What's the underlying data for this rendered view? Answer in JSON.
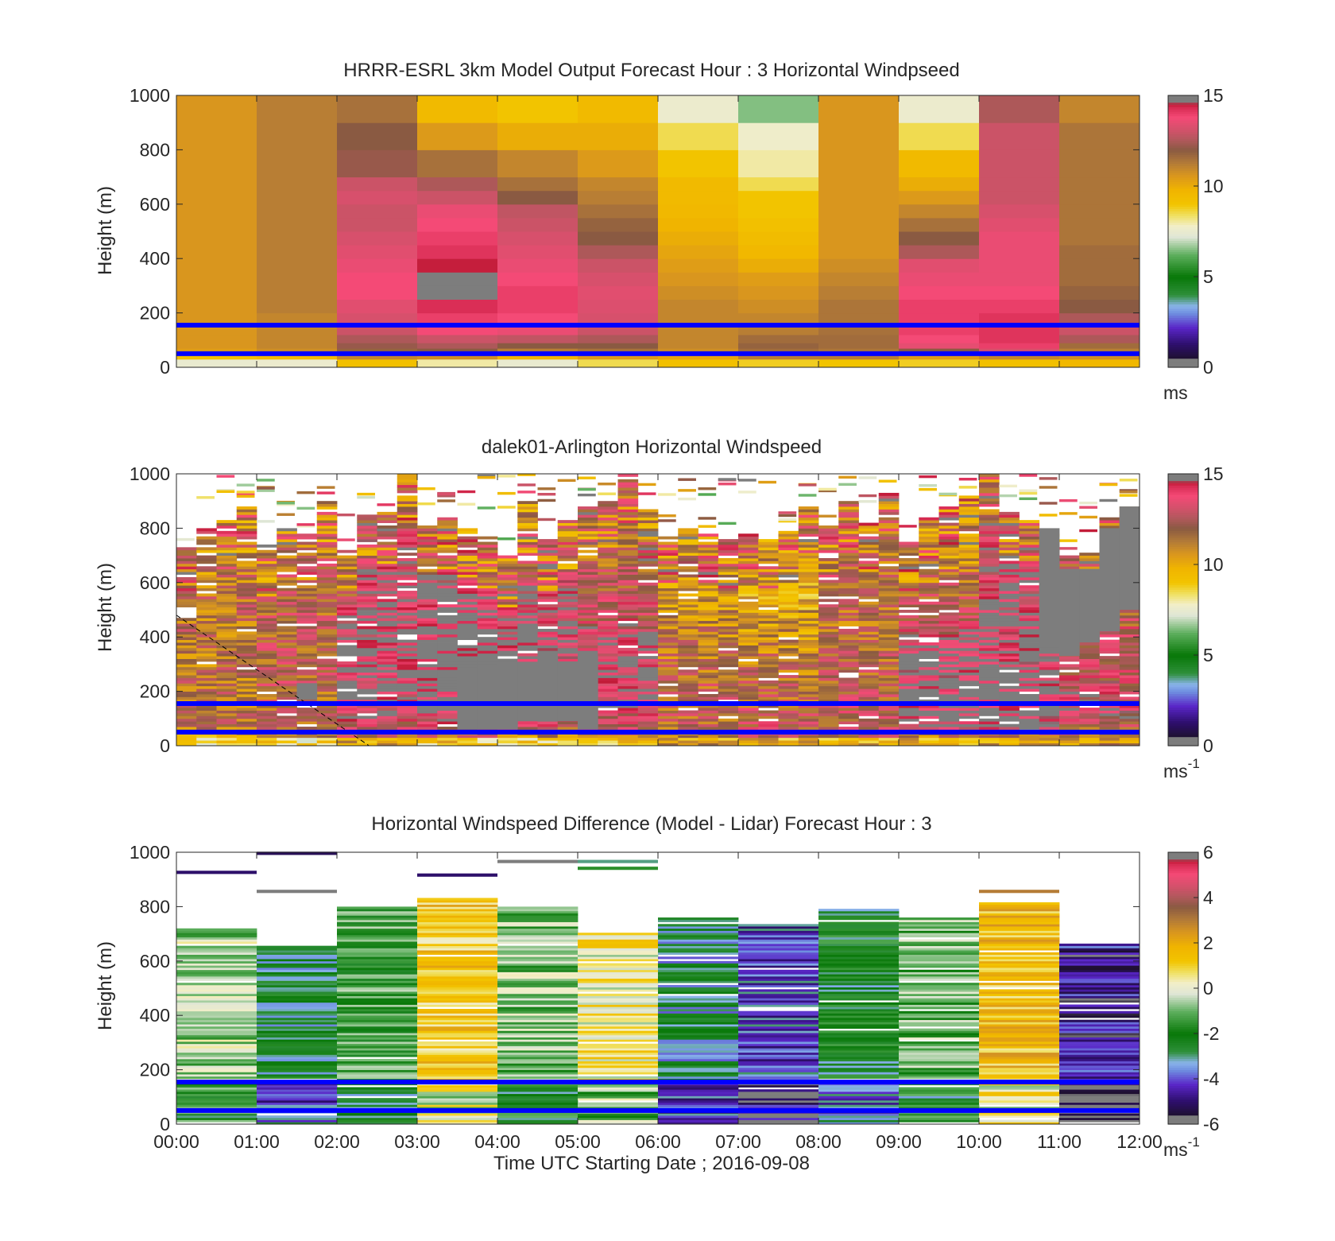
{
  "figure": {
    "xlabel": "Time UTC  Starting Date ; 2016-09-08",
    "x_ticks": [
      "00:00",
      "01:00",
      "02:00",
      "03:00",
      "04:00",
      "05:00",
      "06:00",
      "07:00",
      "08:00",
      "09:00",
      "10:00",
      "11:00",
      "12:00"
    ],
    "blue_lines_height_m": [
      50,
      155
    ],
    "line_color": "#0000ff"
  },
  "chart_data": [
    {
      "type": "heatmap",
      "title": "HRRR-ESRL 3km Model Output   Forecast Hour : 3 Horizontal Windpseed",
      "xlabel": "",
      "ylabel": "Height (m)",
      "ylim": [
        0,
        1000
      ],
      "y_ticks": [
        "0",
        "200",
        "400",
        "600",
        "800",
        "1000"
      ],
      "colorbar": {
        "min": 0,
        "max": 15,
        "ticks": [
          "0",
          "5",
          "10",
          "15"
        ],
        "unit": "ms",
        "unit_sup": ""
      },
      "x_hours": [
        0,
        1,
        2,
        3,
        4,
        5,
        6,
        7,
        8,
        9,
        10,
        11,
        12
      ],
      "y_levels": [
        0,
        30,
        50,
        70,
        90,
        120,
        150,
        200,
        250,
        300,
        350,
        400,
        450,
        500,
        550,
        600,
        650,
        700,
        800,
        900,
        1000
      ],
      "values": [
        [
          7.5,
          9.2,
          10.4,
          10.6,
          10.6,
          10.6,
          10.6,
          10.6,
          10.6,
          10.6,
          10.6,
          10.6,
          10.6,
          10.6,
          10.6,
          10.6,
          10.6,
          10.6,
          10.6,
          10.6
        ],
        [
          7.6,
          9.5,
          10.8,
          11.0,
          11.0,
          11.0,
          11.0,
          11.2,
          11.2,
          11.2,
          11.2,
          11.2,
          11.2,
          11.2,
          11.2,
          11.2,
          11.2,
          11.2,
          11.2,
          11.2
        ],
        [
          9.2,
          11.0,
          11.8,
          12.2,
          12.5,
          13.0,
          13.2,
          13.4,
          13.8,
          13.8,
          13.6,
          13.4,
          13.2,
          13.0,
          13.0,
          13.2,
          13.0,
          12.2,
          12.0,
          11.5
        ],
        [
          8.0,
          10.8,
          12.0,
          12.5,
          13.0,
          13.8,
          14.0,
          14.3,
          14.6,
          14.8,
          14.5,
          14.2,
          14.0,
          13.8,
          13.6,
          13.0,
          12.5,
          11.5,
          10.5,
          9.5
        ],
        [
          7.5,
          9.8,
          11.2,
          12.0,
          12.8,
          13.6,
          13.8,
          14.0,
          14.0,
          13.8,
          13.6,
          13.4,
          13.2,
          13.0,
          12.8,
          12.0,
          11.5,
          11.0,
          10.0,
          9.0
        ],
        [
          8.5,
          10.5,
          11.5,
          12.0,
          12.5,
          13.0,
          13.2,
          13.3,
          13.4,
          13.2,
          13.0,
          12.5,
          12.0,
          11.8,
          11.5,
          11.2,
          11.0,
          10.5,
          10.0,
          9.5
        ],
        [
          9.2,
          10.2,
          10.8,
          11.0,
          11.0,
          11.0,
          11.0,
          11.0,
          10.8,
          10.6,
          10.4,
          10.2,
          10.0,
          9.8,
          9.6,
          9.5,
          9.5,
          9.0,
          8.5,
          7.6
        ],
        [
          8.8,
          11.2,
          11.6,
          11.8,
          11.6,
          11.2,
          11.0,
          10.8,
          10.6,
          10.4,
          10.0,
          9.6,
          9.4,
          9.2,
          9.0,
          9.0,
          8.5,
          8.0,
          7.7,
          6.5
        ],
        [
          9.0,
          11.2,
          11.4,
          11.6,
          11.6,
          11.5,
          11.4,
          11.4,
          11.2,
          11.0,
          10.8,
          10.6,
          10.6,
          10.6,
          10.6,
          10.6,
          10.6,
          10.6,
          10.6,
          10.6
        ],
        [
          8.8,
          10.5,
          12.0,
          13.5,
          13.8,
          14.0,
          14.0,
          14.0,
          13.8,
          13.6,
          13.4,
          12.5,
          12.0,
          11.5,
          11.0,
          10.5,
          10.0,
          9.5,
          8.5,
          7.6
        ],
        [
          9.2,
          11.0,
          13.2,
          14.0,
          14.2,
          14.2,
          14.2,
          14.0,
          13.8,
          13.6,
          13.6,
          13.6,
          13.6,
          13.4,
          13.2,
          13.0,
          13.0,
          13.0,
          13.0,
          12.5
        ],
        [
          9.6,
          10.8,
          11.2,
          11.6,
          12.5,
          13.0,
          12.5,
          12.0,
          11.8,
          11.6,
          11.6,
          11.6,
          11.4,
          11.4,
          11.4,
          11.4,
          11.4,
          11.4,
          11.4,
          11.0
        ]
      ]
    },
    {
      "type": "heatmap",
      "title": "dalek01-Arlington  Horizontal Windspeed",
      "xlabel": "",
      "ylabel": "Height (m)",
      "ylim": [
        0,
        1000
      ],
      "y_ticks": [
        "0",
        "200",
        "400",
        "600",
        "800",
        "1000"
      ],
      "colorbar": {
        "min": 0,
        "max": 15,
        "ticks": [
          "0",
          "5",
          "10",
          "15"
        ],
        "unit": "ms",
        "unit_sup": "-1"
      },
      "x_hours": [
        0,
        12
      ],
      "columns_per_hour": 4,
      "column_tops_m": [
        730,
        800,
        830,
        880,
        740,
        800,
        780,
        900,
        720,
        850,
        860,
        1000,
        810,
        840,
        800,
        770,
        700,
        900,
        760,
        830,
        880,
        900,
        1000,
        870,
        770,
        810,
        780,
        760,
        780,
        760,
        790,
        880,
        810,
        900,
        820,
        930,
        760,
        840,
        880,
        920,
        1000,
        860,
        830,
        780,
        700,
        710,
        840,
        880
      ],
      "gray_regions": [
        {
          "col": 6,
          "from": 170,
          "to": 230
        },
        {
          "col": 14,
          "from": 60,
          "to": 280
        },
        {
          "col": 15,
          "from": 60,
          "to": 290
        },
        {
          "col": 16,
          "from": 60,
          "to": 300
        },
        {
          "col": 17,
          "from": 90,
          "to": 300
        },
        {
          "col": 18,
          "from": 90,
          "to": 330
        },
        {
          "col": 19,
          "from": 90,
          "to": 310
        },
        {
          "col": 20,
          "from": 60,
          "to": 330
        },
        {
          "col": 43,
          "from": 360,
          "to": 800
        },
        {
          "col": 44,
          "from": 330,
          "to": 650
        },
        {
          "col": 45,
          "from": 380,
          "to": 650
        },
        {
          "col": 46,
          "from": 420,
          "to": 800
        },
        {
          "col": 47,
          "from": 500,
          "to": 880
        }
      ],
      "dashed_line": {
        "from": [
          0.0,
          480
        ],
        "to": [
          2.4,
          0
        ]
      }
    },
    {
      "type": "heatmap",
      "title": "Horizontal Windspeed Difference (Model - Lidar) Forecast Hour : 3",
      "xlabel": "Time UTC  Starting Date ; 2016-09-08",
      "ylabel": "Height (m)",
      "ylim": [
        0,
        1000
      ],
      "y_ticks": [
        "0",
        "200",
        "400",
        "600",
        "800",
        "1000"
      ],
      "colorbar": {
        "min": -6,
        "max": 6,
        "ticks": [
          "-6",
          "-4",
          "-2",
          "0",
          "2",
          "4",
          "6"
        ],
        "unit": "ms",
        "unit_sup": "-1"
      },
      "x_hours": [
        0,
        1,
        2,
        3,
        4,
        5,
        6,
        7,
        8,
        9,
        10,
        11,
        12
      ],
      "column_tops_m": [
        720,
        650,
        800,
        830,
        800,
        710,
        760,
        750,
        790,
        760,
        810,
        660
      ],
      "column_means": [
        -0.6,
        -2.6,
        -1.5,
        1.2,
        -0.8,
        0.4,
        -2.9,
        -4.0,
        -2.3,
        -1.0,
        1.5,
        -4.6
      ],
      "isolated_bands": [
        {
          "col": 0,
          "y": 920,
          "value": -5.0
        },
        {
          "col": 1,
          "y": 850,
          "value": 6.0
        },
        {
          "col": 1,
          "y": 990,
          "value": -5.2
        },
        {
          "col": 3,
          "y": 910,
          "value": -5.0
        },
        {
          "col": 4,
          "y": 960,
          "value": -6.0
        },
        {
          "col": 5,
          "y": 960,
          "value": -3.0
        },
        {
          "col": 5,
          "y": 935,
          "value": -1.6
        },
        {
          "col": 10,
          "y": 850,
          "value": 3.0
        }
      ]
    }
  ]
}
